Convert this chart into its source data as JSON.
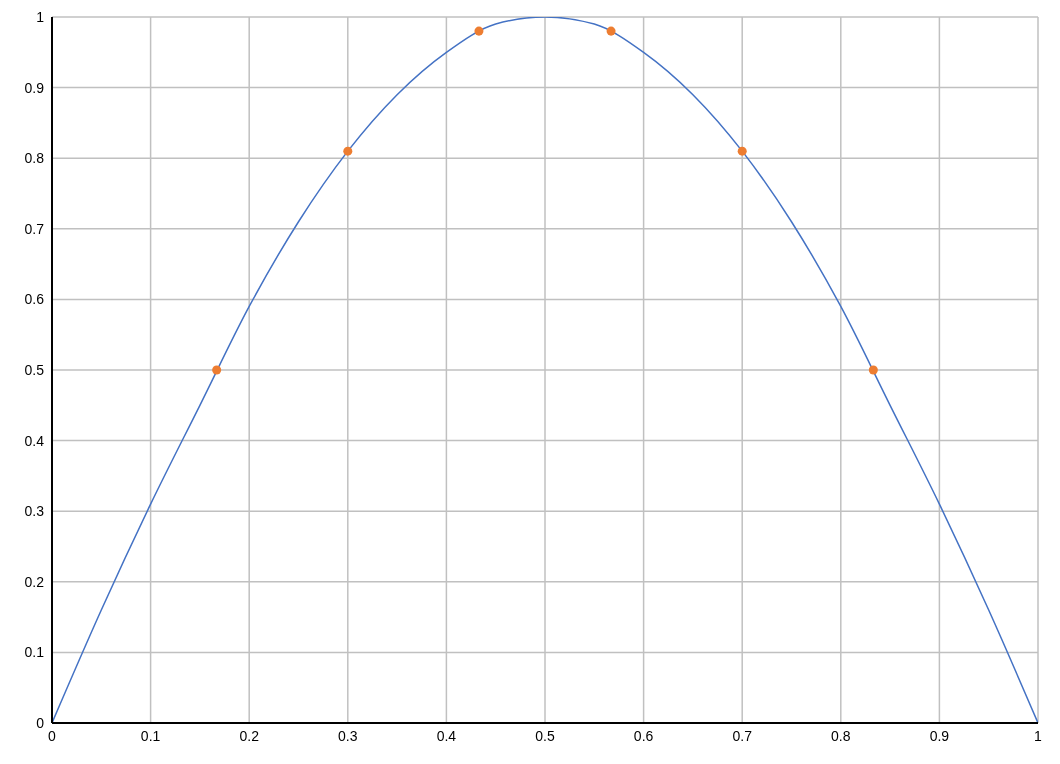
{
  "chart_data": {
    "type": "line",
    "xlim": [
      0,
      1
    ],
    "xticks": [
      0,
      0.1,
      0.2,
      0.3,
      0.4,
      0.5,
      0.6,
      0.7,
      0.8,
      0.9,
      1
    ],
    "ylim": [
      0,
      1
    ],
    "yticks": [
      0,
      0.1,
      0.2,
      0.3,
      0.4,
      0.5,
      0.6,
      0.7,
      0.8,
      0.9,
      1
    ],
    "grid": true,
    "series": [
      {
        "color": "#4472c4",
        "marker": "none",
        "x": [
          0,
          0.05,
          0.1,
          0.15,
          0.2,
          0.25,
          0.3,
          0.35,
          0.4,
          0.45,
          0.5,
          0.55,
          0.6,
          0.65,
          0.7,
          0.75,
          0.8,
          0.85,
          0.9,
          0.95,
          1
        ],
        "values": [
          0,
          0.16,
          0.31,
          0.45,
          0.59,
          0.71,
          0.81,
          0.89,
          0.95,
          0.99,
          1,
          0.99,
          0.95,
          0.89,
          0.81,
          0.71,
          0.59,
          0.45,
          0.31,
          0.16,
          0
        ]
      },
      {
        "type": "scatter",
        "color": "#ed7d31",
        "marker": "circle",
        "x": [
          0.167,
          0.3,
          0.433,
          0.567,
          0.7,
          0.833
        ],
        "values": [
          0.5,
          0.81,
          0.98,
          0.98,
          0.81,
          0.5
        ]
      }
    ]
  }
}
